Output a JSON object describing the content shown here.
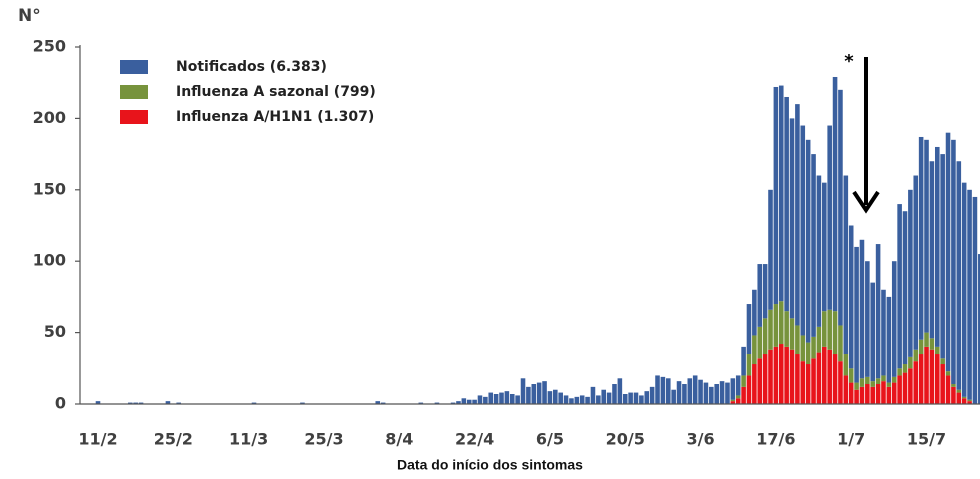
{
  "chart_data": {
    "type": "bar",
    "stacked": true,
    "y_label": "N°",
    "x_label": "Data do início dos sintomas",
    "annotation": "*",
    "categories": [
      "11/2",
      null,
      null,
      null,
      null,
      null,
      null,
      null,
      null,
      null,
      null,
      null,
      null,
      null,
      "25/2",
      null,
      null,
      null,
      null,
      null,
      null,
      null,
      null,
      null,
      null,
      null,
      null,
      null,
      "11/3",
      null,
      null,
      null,
      null,
      null,
      null,
      null,
      null,
      null,
      null,
      null,
      null,
      null,
      "25/3",
      null,
      null,
      null,
      null,
      null,
      null,
      null,
      null,
      null,
      null,
      null,
      null,
      null,
      "8/4",
      null,
      null,
      null,
      null,
      null,
      null,
      null,
      null,
      null,
      null,
      null,
      null,
      null,
      "22/4",
      null,
      null,
      null,
      null,
      null,
      null,
      null,
      null,
      null,
      null,
      null,
      null,
      null,
      "6/5",
      null,
      null,
      null,
      null,
      null,
      null,
      null,
      null,
      null,
      null,
      null,
      null,
      null,
      "20/5",
      null,
      null,
      null,
      null,
      null,
      null,
      null,
      null,
      null,
      null,
      null,
      null,
      null,
      "3/6",
      null,
      null,
      null,
      null,
      null,
      null,
      null,
      null,
      null,
      null,
      null,
      null,
      null,
      "17/6",
      null,
      null,
      null,
      null,
      null,
      null,
      null,
      null,
      null,
      null,
      null,
      null,
      null,
      "1/7",
      null,
      null,
      null,
      null,
      null,
      null,
      null,
      null,
      null,
      null,
      null,
      null,
      null,
      "15/7",
      null,
      null,
      null,
      null,
      null,
      null,
      null,
      null,
      null,
      null,
      null
    ],
    "series": [
      {
        "name": "Notificados (6.383)",
        "color": "#3a5f9e",
        "values": [
          2,
          0,
          0,
          0,
          0,
          0,
          1,
          1,
          1,
          0,
          0,
          0,
          0,
          2,
          0,
          1,
          0,
          0,
          0,
          0,
          0,
          0,
          0,
          0,
          0,
          0,
          0,
          0,
          0,
          1,
          0,
          0,
          0,
          0,
          0,
          0,
          0,
          0,
          1,
          0,
          0,
          0,
          0,
          0,
          0,
          0,
          0,
          0,
          0,
          0,
          0,
          0,
          2,
          1,
          0,
          0,
          0,
          0,
          0,
          0,
          1,
          0,
          0,
          1,
          0,
          0,
          1,
          2,
          4,
          3,
          3,
          6,
          5,
          8,
          7,
          8,
          9,
          7,
          6,
          18,
          12,
          14,
          15,
          16,
          9,
          10,
          8,
          6,
          4,
          5,
          6,
          5,
          12,
          6,
          10,
          8,
          14,
          18,
          7,
          8,
          8,
          6,
          9,
          12,
          20,
          19,
          18,
          10,
          16,
          14,
          18,
          20,
          17,
          15,
          12,
          14,
          16,
          15,
          15,
          14,
          20,
          35,
          32,
          44,
          38,
          84,
          152,
          151,
          150,
          140,
          155,
          147,
          142,
          128,
          106,
          90,
          129,
          164,
          165,
          125,
          100,
          95,
          97,
          81,
          69,
          94,
          60,
          60,
          81,
          115,
          107,
          117,
          122,
          142,
          135,
          124,
          140,
          143,
          167,
          171,
          160,
          150,
          147,
          145,
          105,
          60
        ]
      },
      {
        "name": "Influenza A sazonal (799)",
        "color": "#77933c",
        "values": [
          0,
          0,
          0,
          0,
          0,
          0,
          0,
          0,
          0,
          0,
          0,
          0,
          0,
          0,
          0,
          0,
          0,
          0,
          0,
          0,
          0,
          0,
          0,
          0,
          0,
          0,
          0,
          0,
          0,
          0,
          0,
          0,
          0,
          0,
          0,
          0,
          0,
          0,
          0,
          0,
          0,
          0,
          0,
          0,
          0,
          0,
          0,
          0,
          0,
          0,
          0,
          0,
          0,
          0,
          0,
          0,
          0,
          0,
          0,
          0,
          0,
          0,
          0,
          0,
          0,
          0,
          0,
          0,
          0,
          0,
          0,
          0,
          0,
          0,
          0,
          0,
          0,
          0,
          0,
          0,
          0,
          0,
          0,
          0,
          0,
          0,
          0,
          0,
          0,
          0,
          0,
          0,
          0,
          0,
          0,
          0,
          0,
          0,
          0,
          0,
          0,
          0,
          0,
          0,
          0,
          0,
          0,
          0,
          0,
          0,
          0,
          0,
          0,
          0,
          0,
          0,
          0,
          0,
          1,
          2,
          8,
          15,
          20,
          22,
          25,
          28,
          30,
          30,
          25,
          22,
          20,
          18,
          15,
          15,
          18,
          25,
          28,
          30,
          25,
          15,
          10,
          5,
          6,
          5,
          4,
          4,
          4,
          3,
          4,
          5,
          6,
          8,
          8,
          10,
          10,
          8,
          5,
          4,
          3,
          2,
          2,
          1,
          1,
          0,
          0,
          0
        ]
      },
      {
        "name": "Influenza A/H1N1 (1.307)",
        "color": "#e8141b",
        "values": [
          0,
          0,
          0,
          0,
          0,
          0,
          0,
          0,
          0,
          0,
          0,
          0,
          0,
          0,
          0,
          0,
          0,
          0,
          0,
          0,
          0,
          0,
          0,
          0,
          0,
          0,
          0,
          0,
          0,
          0,
          0,
          0,
          0,
          0,
          0,
          0,
          0,
          0,
          0,
          0,
          0,
          0,
          0,
          0,
          0,
          0,
          0,
          0,
          0,
          0,
          0,
          0,
          0,
          0,
          0,
          0,
          0,
          0,
          0,
          0,
          0,
          0,
          0,
          0,
          0,
          0,
          0,
          0,
          0,
          0,
          0,
          0,
          0,
          0,
          0,
          0,
          0,
          0,
          0,
          0,
          0,
          0,
          0,
          0,
          0,
          0,
          0,
          0,
          0,
          0,
          0,
          0,
          0,
          0,
          0,
          0,
          0,
          0,
          0,
          0,
          0,
          0,
          0,
          0,
          0,
          0,
          0,
          0,
          0,
          0,
          0,
          0,
          0,
          0,
          0,
          0,
          0,
          0,
          2,
          4,
          12,
          20,
          28,
          32,
          35,
          38,
          40,
          42,
          40,
          38,
          35,
          30,
          28,
          32,
          36,
          40,
          38,
          35,
          30,
          20,
          15,
          10,
          12,
          14,
          12,
          14,
          16,
          12,
          15,
          20,
          22,
          25,
          30,
          35,
          40,
          38,
          35,
          28,
          20,
          12,
          8,
          4,
          2,
          0,
          0,
          0
        ]
      }
    ],
    "ylim": [
      0,
      250
    ],
    "yticks": [
      0,
      50,
      100,
      150,
      200,
      250
    ],
    "grid": false,
    "legend": "top-left"
  }
}
